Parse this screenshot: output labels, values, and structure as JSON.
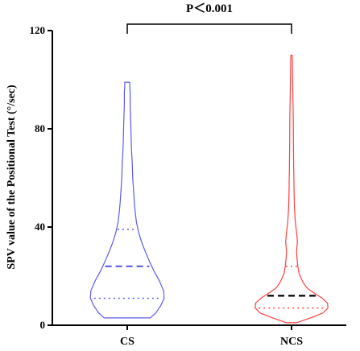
{
  "chart_data": {
    "type": "violin",
    "ylabel": "SPV value of the Positional Test (°/sec)",
    "ylim": [
      0,
      120
    ],
    "yticks": [
      0,
      40,
      80,
      120
    ],
    "categories": [
      "CS",
      "NCS"
    ],
    "series": [
      {
        "category": "CS",
        "color": "#5b5bf0",
        "median_color": "#5b5bf0",
        "min": 3,
        "max": 99,
        "q1": 11,
        "median": 24,
        "q3": 39,
        "density": [
          [
            3,
            0.55
          ],
          [
            5,
            0.68
          ],
          [
            8,
            0.8
          ],
          [
            11,
            0.88
          ],
          [
            14,
            0.87
          ],
          [
            18,
            0.77
          ],
          [
            22,
            0.64
          ],
          [
            26,
            0.53
          ],
          [
            30,
            0.43
          ],
          [
            34,
            0.34
          ],
          [
            38,
            0.27
          ],
          [
            42,
            0.22
          ],
          [
            46,
            0.19
          ],
          [
            50,
            0.17
          ],
          [
            55,
            0.15
          ],
          [
            60,
            0.13
          ],
          [
            66,
            0.12
          ],
          [
            72,
            0.1
          ],
          [
            78,
            0.09
          ],
          [
            84,
            0.08
          ],
          [
            90,
            0.07
          ],
          [
            95,
            0.07
          ],
          [
            97,
            0.06
          ],
          [
            99,
            0.06
          ]
        ]
      },
      {
        "category": "NCS",
        "color": "#ff4040",
        "median_color": "#000000",
        "min": 1,
        "max": 110,
        "q1": 7,
        "median": 12,
        "q3": 24,
        "density": [
          [
            1,
            0.12
          ],
          [
            3,
            0.45
          ],
          [
            5,
            0.75
          ],
          [
            7,
            0.87
          ],
          [
            9,
            0.86
          ],
          [
            11,
            0.73
          ],
          [
            13,
            0.55
          ],
          [
            15,
            0.38
          ],
          [
            17,
            0.29
          ],
          [
            19,
            0.23
          ],
          [
            21,
            0.18
          ],
          [
            24,
            0.15
          ],
          [
            27,
            0.13
          ],
          [
            30,
            0.12
          ],
          [
            34,
            0.14
          ],
          [
            38,
            0.12
          ],
          [
            42,
            0.09
          ],
          [
            48,
            0.07
          ],
          [
            55,
            0.06
          ],
          [
            65,
            0.05
          ],
          [
            75,
            0.045
          ],
          [
            85,
            0.04
          ],
          [
            95,
            0.03
          ],
          [
            102,
            0.025
          ],
          [
            108,
            0.02
          ],
          [
            110,
            0.015
          ]
        ]
      }
    ],
    "annotation": "P＜0.001"
  }
}
